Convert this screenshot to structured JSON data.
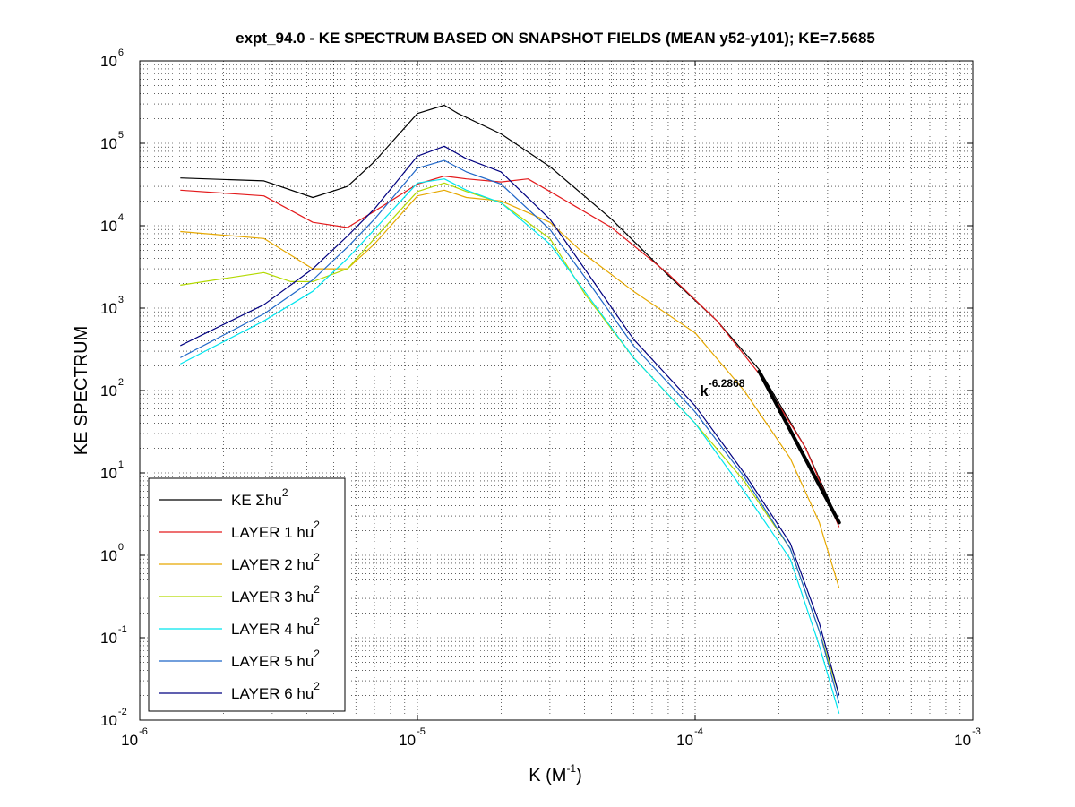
{
  "chart_data": {
    "type": "line",
    "title": "expt_94.0 - KE SPECTRUM BASED ON SNAPSHOT FIELDS (MEAN y52-y101); KE=7.5685",
    "xlabel": {
      "base": "K  (M",
      "sup": "-1",
      "tail": ")"
    },
    "ylabel": "KE SPECTRUM",
    "xscale": "log",
    "yscale": "log",
    "xlim": [
      1e-06,
      0.001
    ],
    "ylim": [
      0.01,
      1000000.0
    ],
    "grid": true,
    "legend_position": "bottom-left",
    "x_ticks": [
      {
        "base": "10",
        "exp": "-6",
        "value": 1e-06
      },
      {
        "base": "10",
        "exp": "-5",
        "value": 1e-05
      },
      {
        "base": "10",
        "exp": "-4",
        "value": 0.0001
      },
      {
        "base": "10",
        "exp": "-3",
        "value": 0.001
      }
    ],
    "y_ticks": [
      {
        "base": "10",
        "exp": "-2",
        "value": 0.01
      },
      {
        "base": "10",
        "exp": "-1",
        "value": 0.1
      },
      {
        "base": "10",
        "exp": "0",
        "value": 1
      },
      {
        "base": "10",
        "exp": "1",
        "value": 10
      },
      {
        "base": "10",
        "exp": "2",
        "value": 100
      },
      {
        "base": "10",
        "exp": "3",
        "value": 1000
      },
      {
        "base": "10",
        "exp": "4",
        "value": 10000
      },
      {
        "base": "10",
        "exp": "5",
        "value": 100000
      },
      {
        "base": "10",
        "exp": "6",
        "value": 1000000
      }
    ],
    "series": [
      {
        "name": "KE Σhu",
        "legend_sup": "2",
        "color": "#000000",
        "x": [
          1.4e-06,
          2.8e-06,
          4.2e-06,
          5.6e-06,
          7e-06,
          1e-05,
          1.25e-05,
          1.4e-05,
          2e-05,
          3e-05,
          5e-05,
          8e-05,
          0.00012,
          0.00017,
          0.00025,
          0.00033
        ],
        "y": [
          38000,
          35000,
          22000,
          30000,
          60000,
          230000,
          290000,
          230000,
          130000,
          52000,
          12000,
          2500,
          700,
          180,
          20,
          2.5
        ]
      },
      {
        "name": "LAYER 1 hu",
        "legend_sup": "2",
        "color": "#e31a1c",
        "x": [
          1.4e-06,
          2.8e-06,
          4.2e-06,
          5.6e-06,
          7e-06,
          1e-05,
          1.25e-05,
          1.5e-05,
          2e-05,
          2.5e-05,
          3e-05,
          5e-05,
          8e-05,
          0.00012,
          0.00017,
          0.00025,
          0.00033
        ],
        "y": [
          27000,
          23000,
          11000,
          9500,
          15000,
          32000,
          40000,
          37000,
          34000,
          37000,
          26000,
          9500,
          2600,
          700,
          160,
          20,
          2.2
        ]
      },
      {
        "name": "LAYER 2 hu",
        "legend_sup": "2",
        "color": "#e6a800",
        "x": [
          1.4e-06,
          2.8e-06,
          4.2e-06,
          5.6e-06,
          7e-06,
          1e-05,
          1.25e-05,
          1.5e-05,
          2e-05,
          3e-05,
          4e-05,
          6e-05,
          0.0001,
          0.00015,
          0.00022,
          0.00028,
          0.00033
        ],
        "y": [
          8500,
          7000,
          3000,
          3000,
          6000,
          23000,
          27000,
          22000,
          20000,
          11000,
          4500,
          1600,
          500,
          100,
          15,
          2.5,
          0.4
        ]
      },
      {
        "name": "LAYER 3 hu",
        "legend_sup": "2",
        "color": "#b3d900",
        "x": [
          1.4e-06,
          2.8e-06,
          3.5e-06,
          4.2e-06,
          5.6e-06,
          7e-06,
          1e-05,
          1.25e-05,
          1.5e-05,
          2e-05,
          3e-05,
          4e-05,
          6e-05,
          0.0001,
          0.00015,
          0.00022,
          0.00028,
          0.00033
        ],
        "y": [
          1900,
          2700,
          2100,
          2100,
          3000,
          7000,
          26000,
          33000,
          26000,
          19000,
          7000,
          1500,
          250,
          40,
          8,
          1.2,
          0.12,
          0.02
        ]
      },
      {
        "name": "LAYER 4 hu",
        "legend_sup": "2",
        "color": "#00e5ee",
        "x": [
          1.4e-06,
          2.8e-06,
          4.2e-06,
          5.6e-06,
          7e-06,
          1e-05,
          1.25e-05,
          1.5e-05,
          2e-05,
          3e-05,
          4e-05,
          6e-05,
          0.0001,
          0.00015,
          0.00022,
          0.00028,
          0.00033
        ],
        "y": [
          210,
          700,
          1600,
          4000,
          9000,
          33000,
          37000,
          27000,
          19000,
          6000,
          1600,
          250,
          40,
          6,
          0.9,
          0.08,
          0.012
        ]
      },
      {
        "name": "LAYER 5 hu",
        "legend_sup": "2",
        "color": "#1f66c8",
        "x": [
          1.4e-06,
          2.8e-06,
          4.2e-06,
          5.6e-06,
          7e-06,
          1e-05,
          1.25e-05,
          1.5e-05,
          2e-05,
          3e-05,
          4e-05,
          6e-05,
          0.0001,
          0.00015,
          0.00022,
          0.00028,
          0.00033
        ],
        "y": [
          250,
          850,
          2200,
          5500,
          12000,
          50000,
          62000,
          45000,
          32000,
          9000,
          2400,
          350,
          55,
          9,
          1.2,
          0.12,
          0.016
        ]
      },
      {
        "name": "LAYER 6 hu",
        "legend_sup": "2",
        "color": "#000080",
        "x": [
          1.4e-06,
          2.8e-06,
          4.2e-06,
          5.6e-06,
          7e-06,
          1e-05,
          1.25e-05,
          1.5e-05,
          2e-05,
          3e-05,
          4e-05,
          6e-05,
          0.0001,
          0.00015,
          0.00022,
          0.00028,
          0.00033
        ],
        "y": [
          350,
          1100,
          3000,
          7500,
          16000,
          70000,
          92000,
          65000,
          45000,
          12000,
          3000,
          420,
          65,
          10,
          1.4,
          0.15,
          0.02
        ]
      }
    ],
    "fit_line": {
      "x": [
        0.00017,
        0.00033
      ],
      "y": [
        170,
        2.5
      ],
      "color": "#000000"
    },
    "annotation": {
      "base": "k",
      "exp": "-6.2868",
      "x": 0.000104,
      "y": 100
    }
  }
}
